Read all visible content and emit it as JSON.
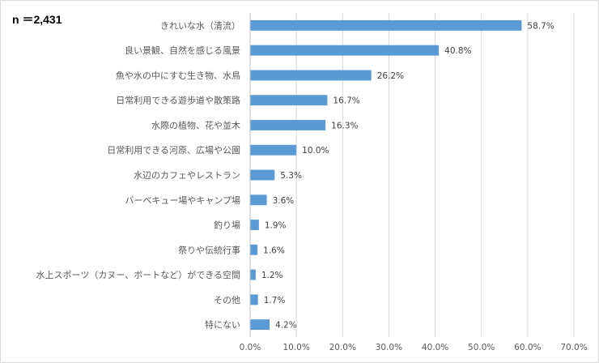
{
  "sample_size": "n ＝2,431",
  "colors": {
    "bar": "#5b9bd5",
    "grid": "#d9d9d9",
    "text": "#595959",
    "axis": "#bfbfbf"
  },
  "chart_data": {
    "type": "bar",
    "orientation": "horizontal",
    "title": "",
    "xlabel": "",
    "ylabel": "",
    "xlim": [
      0,
      70
    ],
    "grid": true,
    "legend": "none",
    "categories": [
      "きれいな水（清流）",
      "良い景観、自然を感じる風景",
      "魚や水の中にすむ生き物、水鳥",
      "日常利用できる遊歩道や散策路",
      "水際の植物、花や並木",
      "日常利用できる河原、広場や公園",
      "水辺のカフェやレストラン",
      "バーベキュー場やキャンプ場",
      "釣り場",
      "祭りや伝統行事",
      "水上スポーツ（カヌー、ボートなど）ができる空間",
      "その他",
      "特にない"
    ],
    "values": [
      58.7,
      40.8,
      26.2,
      16.7,
      16.3,
      10.0,
      5.3,
      3.6,
      1.9,
      1.6,
      1.2,
      1.7,
      4.2
    ],
    "value_labels": [
      "58.7%",
      "40.8%",
      "26.2%",
      "16.7%",
      "16.3%",
      "10.0%",
      "5.3%",
      "3.6%",
      "1.9%",
      "1.6%",
      "1.2%",
      "1.7%",
      "4.2%"
    ],
    "ticks": [
      0,
      10,
      20,
      30,
      40,
      50,
      60,
      70
    ],
    "tick_labels": [
      "0.0%",
      "10.0%",
      "20.0%",
      "30.0%",
      "40.0%",
      "50.0%",
      "60.0%",
      "70.0%"
    ]
  }
}
